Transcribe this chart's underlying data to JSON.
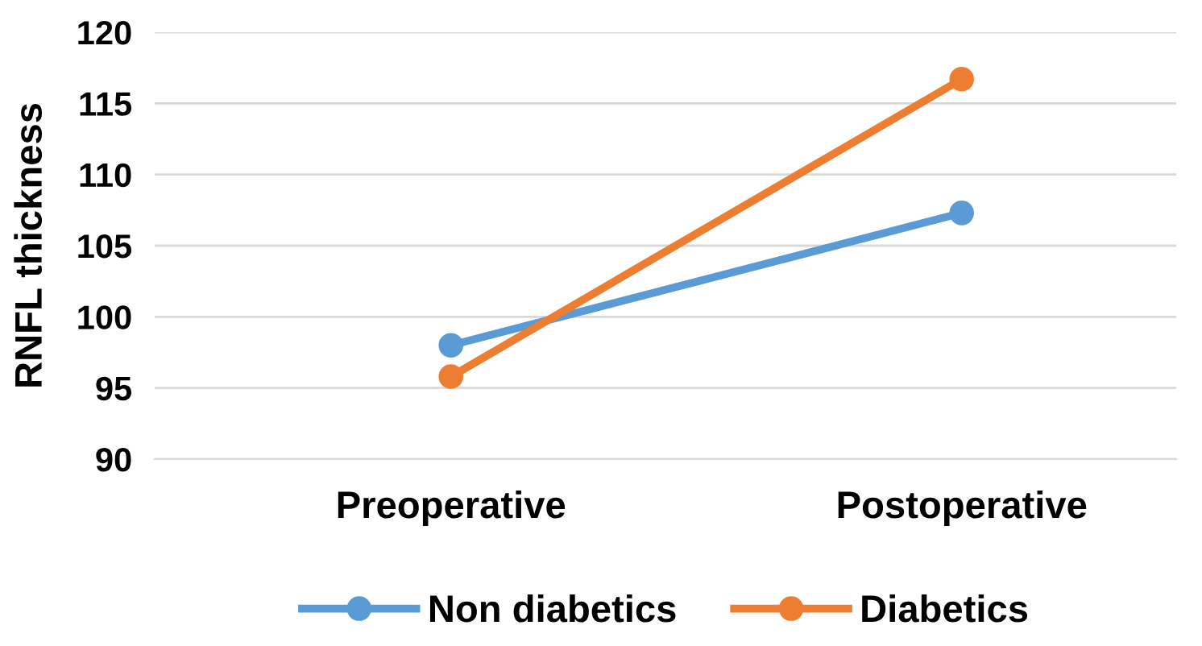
{
  "chart_data": {
    "type": "line",
    "ylabel": "RNFL thickness",
    "categories": [
      "Preoperative",
      "Postoperative"
    ],
    "series": [
      {
        "name": "Non diabetics",
        "color": "#5b9bd5",
        "values": [
          98.0,
          107.3
        ]
      },
      {
        "name": "Diabetics",
        "color": "#ed7d31",
        "values": [
          95.8,
          116.7
        ]
      }
    ],
    "ylim": [
      90,
      120
    ],
    "yticks": [
      90,
      95,
      100,
      105,
      110,
      115,
      120
    ],
    "grid": "y",
    "legend": "bottom",
    "marker": "circle",
    "line_style": "solid"
  }
}
